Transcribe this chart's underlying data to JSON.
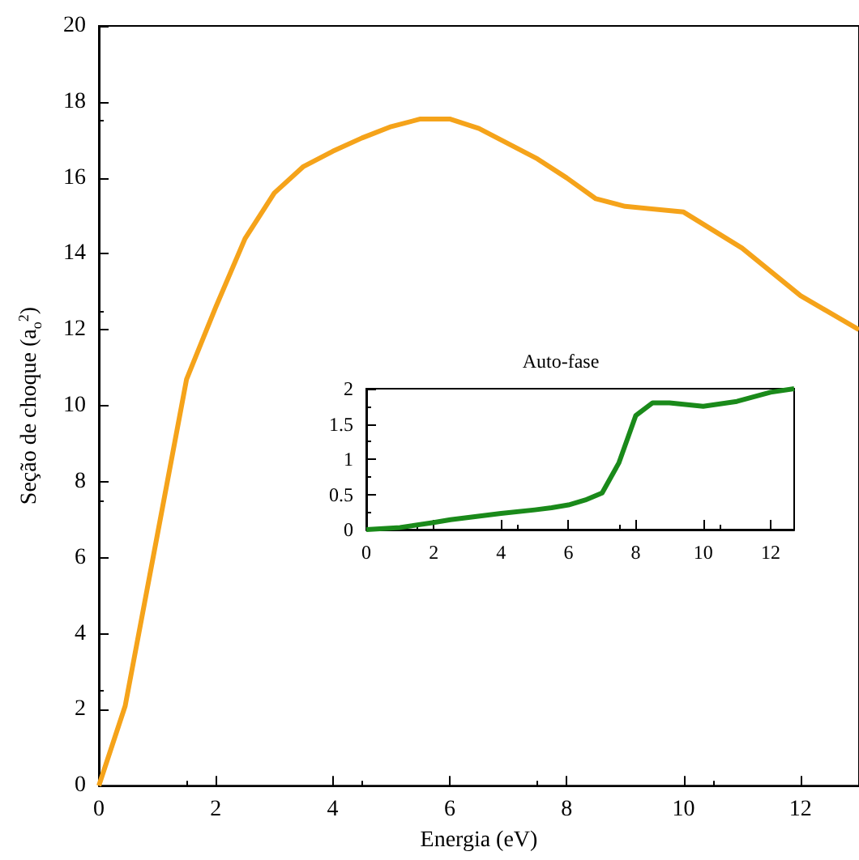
{
  "chart_data": [
    {
      "type": "line",
      "xlabel": "Energia (eV)",
      "ylabel": "Seção de choque (a$_{o}$$^{2}$)",
      "xlim": [
        0,
        13
      ],
      "ylim": [
        0,
        20
      ],
      "xticks": [
        0,
        2,
        4,
        6,
        8,
        10,
        12
      ],
      "yticks": [
        0,
        2,
        4,
        6,
        8,
        10,
        12,
        14,
        16,
        18,
        20
      ],
      "x": [
        0,
        0.45,
        1.0,
        1.5,
        2.0,
        2.5,
        3.0,
        3.5,
        4.0,
        4.5,
        5.0,
        5.5,
        6.0,
        6.5,
        7.0,
        7.5,
        8.0,
        8.5,
        9.0,
        10.0,
        11.0,
        12.0,
        13.0
      ],
      "series": [
        {
          "color": "#f5a31a",
          "values": [
            0,
            2.1,
            6.6,
            10.7,
            12.6,
            14.4,
            15.6,
            16.3,
            16.7,
            17.05,
            17.35,
            17.55,
            17.55,
            17.3,
            16.9,
            16.5,
            16.0,
            15.45,
            15.25,
            15.1,
            14.15,
            12.9,
            12.0
          ]
        }
      ]
    },
    {
      "type": "line",
      "title": "Auto-fase",
      "xlim": [
        0,
        12.7
      ],
      "ylim": [
        0,
        2
      ],
      "xticks": [
        0,
        2,
        4,
        6,
        8,
        10,
        12
      ],
      "yticks": [
        0,
        0.5,
        1,
        1.5,
        2
      ],
      "x": [
        0,
        1,
        2,
        2.5,
        4,
        5,
        5.5,
        6,
        6.5,
        7,
        7.5,
        8,
        8.5,
        9,
        10,
        11,
        12,
        12.7
      ],
      "series": [
        {
          "color": "#1a8a1a",
          "values": [
            0,
            0.03,
            0.1,
            0.14,
            0.23,
            0.28,
            0.31,
            0.35,
            0.42,
            0.52,
            0.95,
            1.62,
            1.8,
            1.8,
            1.75,
            1.82,
            1.95,
            2.0
          ]
        }
      ]
    }
  ]
}
